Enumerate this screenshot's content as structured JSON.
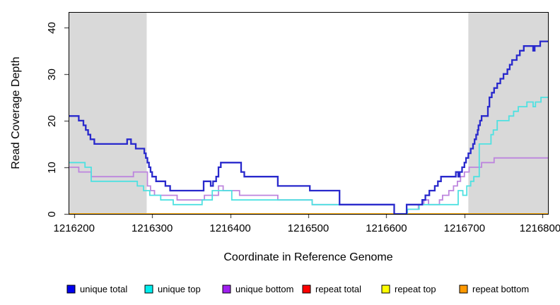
{
  "chart_data": {
    "type": "line",
    "step": true,
    "title": "",
    "xlabel": "Coordinate in Reference Genome",
    "ylabel": "Read Coverage Depth",
    "xlim": [
      1216193,
      1216807
    ],
    "ylim": [
      0,
      43.3
    ],
    "x_ticks": [
      1216200,
      1216300,
      1216400,
      1216500,
      1216600,
      1216700,
      1216800
    ],
    "y_ticks": [
      0,
      10,
      20,
      30,
      40
    ],
    "grid": false,
    "legend_position": "bottom",
    "shade_color": "#d9d9d9",
    "shaded_regions": [
      {
        "x1": 1216193,
        "x2": 1216293
      },
      {
        "x1": 1216705,
        "x2": 1216807
      }
    ],
    "legend_order": [
      "unique total",
      "unique top",
      "unique bottom",
      "repeat total",
      "repeat top",
      "repeat bottom"
    ],
    "series": [
      {
        "name": "repeat total",
        "line_color": "#ee0000",
        "legend_fill": "#ff0000",
        "points": [
          [
            1216193,
            0
          ]
        ]
      },
      {
        "name": "repeat top",
        "line_color": "#ffff00",
        "legend_fill": "#ffff00",
        "points": [
          [
            1216193,
            0
          ]
        ]
      },
      {
        "name": "repeat bottom",
        "line_color": "#ffa500",
        "legend_fill": "#ff9900",
        "points": [
          [
            1216193,
            0
          ]
        ]
      },
      {
        "name": "unique bottom",
        "line_color": "#bd85de",
        "legend_fill": "#a020f0",
        "points": [
          [
            1216193,
            10
          ],
          [
            1216206,
            9
          ],
          [
            1216222,
            8
          ],
          [
            1216276,
            9
          ],
          [
            1216294,
            6
          ],
          [
            1216298,
            5
          ],
          [
            1216303,
            4
          ],
          [
            1216332,
            3
          ],
          [
            1216367,
            4
          ],
          [
            1216385,
            6
          ],
          [
            1216391,
            5
          ],
          [
            1216412,
            4
          ],
          [
            1216461,
            3
          ],
          [
            1216505,
            2
          ],
          [
            1216610,
            0
          ],
          [
            1216626,
            1
          ],
          [
            1216641,
            2
          ],
          [
            1216648,
            3
          ],
          [
            1216654,
            2
          ],
          [
            1216668,
            3
          ],
          [
            1216672,
            4
          ],
          [
            1216680,
            5
          ],
          [
            1216686,
            6
          ],
          [
            1216691,
            7
          ],
          [
            1216695,
            8
          ],
          [
            1216700,
            9
          ],
          [
            1216706,
            10
          ],
          [
            1216722,
            11
          ],
          [
            1216738,
            12
          ]
        ]
      },
      {
        "name": "unique top",
        "line_color": "#4fe1e1",
        "legend_fill": "#00eeee",
        "points": [
          [
            1216193,
            11
          ],
          [
            1216214,
            10
          ],
          [
            1216222,
            7
          ],
          [
            1216281,
            6
          ],
          [
            1216289,
            5
          ],
          [
            1216297,
            4
          ],
          [
            1216311,
            3
          ],
          [
            1216327,
            2
          ],
          [
            1216364,
            3
          ],
          [
            1216377,
            5
          ],
          [
            1216402,
            3
          ],
          [
            1216505,
            2
          ],
          [
            1216610,
            0
          ],
          [
            1216627,
            1
          ],
          [
            1216642,
            2
          ],
          [
            1216692,
            5
          ],
          [
            1216698,
            4
          ],
          [
            1216703,
            6
          ],
          [
            1216708,
            7
          ],
          [
            1216712,
            8
          ],
          [
            1216719,
            15
          ],
          [
            1216734,
            17
          ],
          [
            1216737,
            18
          ],
          [
            1216742,
            20
          ],
          [
            1216757,
            21
          ],
          [
            1216763,
            22
          ],
          [
            1216769,
            23
          ],
          [
            1216780,
            24
          ],
          [
            1216788,
            23
          ],
          [
            1216791,
            24
          ],
          [
            1216798,
            25
          ]
        ]
      },
      {
        "name": "unique total",
        "line_color": "#2929cc",
        "legend_fill": "#0000ee",
        "points": [
          [
            1216193,
            21
          ],
          [
            1216206,
            20
          ],
          [
            1216212,
            19
          ],
          [
            1216215,
            18
          ],
          [
            1216218,
            17
          ],
          [
            1216221,
            16
          ],
          [
            1216226,
            15
          ],
          [
            1216268,
            16
          ],
          [
            1216273,
            15
          ],
          [
            1216279,
            14
          ],
          [
            1216290,
            13
          ],
          [
            1216292,
            12
          ],
          [
            1216294,
            11
          ],
          [
            1216296,
            10
          ],
          [
            1216298,
            9
          ],
          [
            1216300,
            8
          ],
          [
            1216305,
            7
          ],
          [
            1216317,
            6
          ],
          [
            1216323,
            5
          ],
          [
            1216366,
            7
          ],
          [
            1216375,
            6
          ],
          [
            1216378,
            7
          ],
          [
            1216382,
            8
          ],
          [
            1216385,
            10
          ],
          [
            1216388,
            11
          ],
          [
            1216414,
            9
          ],
          [
            1216418,
            8
          ],
          [
            1216461,
            6
          ],
          [
            1216502,
            5
          ],
          [
            1216540,
            2
          ],
          [
            1216610,
            0
          ],
          [
            1216626,
            2
          ],
          [
            1216646,
            3
          ],
          [
            1216650,
            4
          ],
          [
            1216655,
            5
          ],
          [
            1216662,
            6
          ],
          [
            1216666,
            7
          ],
          [
            1216670,
            8
          ],
          [
            1216689,
            9
          ],
          [
            1216692,
            8
          ],
          [
            1216694,
            9
          ],
          [
            1216697,
            10
          ],
          [
            1216700,
            11
          ],
          [
            1216702,
            12
          ],
          [
            1216705,
            13
          ],
          [
            1216708,
            14
          ],
          [
            1216711,
            15
          ],
          [
            1216713,
            16
          ],
          [
            1216715,
            17
          ],
          [
            1216717,
            18
          ],
          [
            1216718,
            19
          ],
          [
            1216720,
            20
          ],
          [
            1216722,
            21
          ],
          [
            1216730,
            23
          ],
          [
            1216732,
            25
          ],
          [
            1216735,
            26
          ],
          [
            1216738,
            27
          ],
          [
            1216742,
            28
          ],
          [
            1216746,
            29
          ],
          [
            1216750,
            30
          ],
          [
            1216755,
            31
          ],
          [
            1216758,
            32
          ],
          [
            1216761,
            33
          ],
          [
            1216767,
            34
          ],
          [
            1216771,
            35
          ],
          [
            1216776,
            36
          ],
          [
            1216788,
            35
          ],
          [
            1216790,
            36
          ],
          [
            1216797,
            37
          ]
        ]
      }
    ]
  }
}
